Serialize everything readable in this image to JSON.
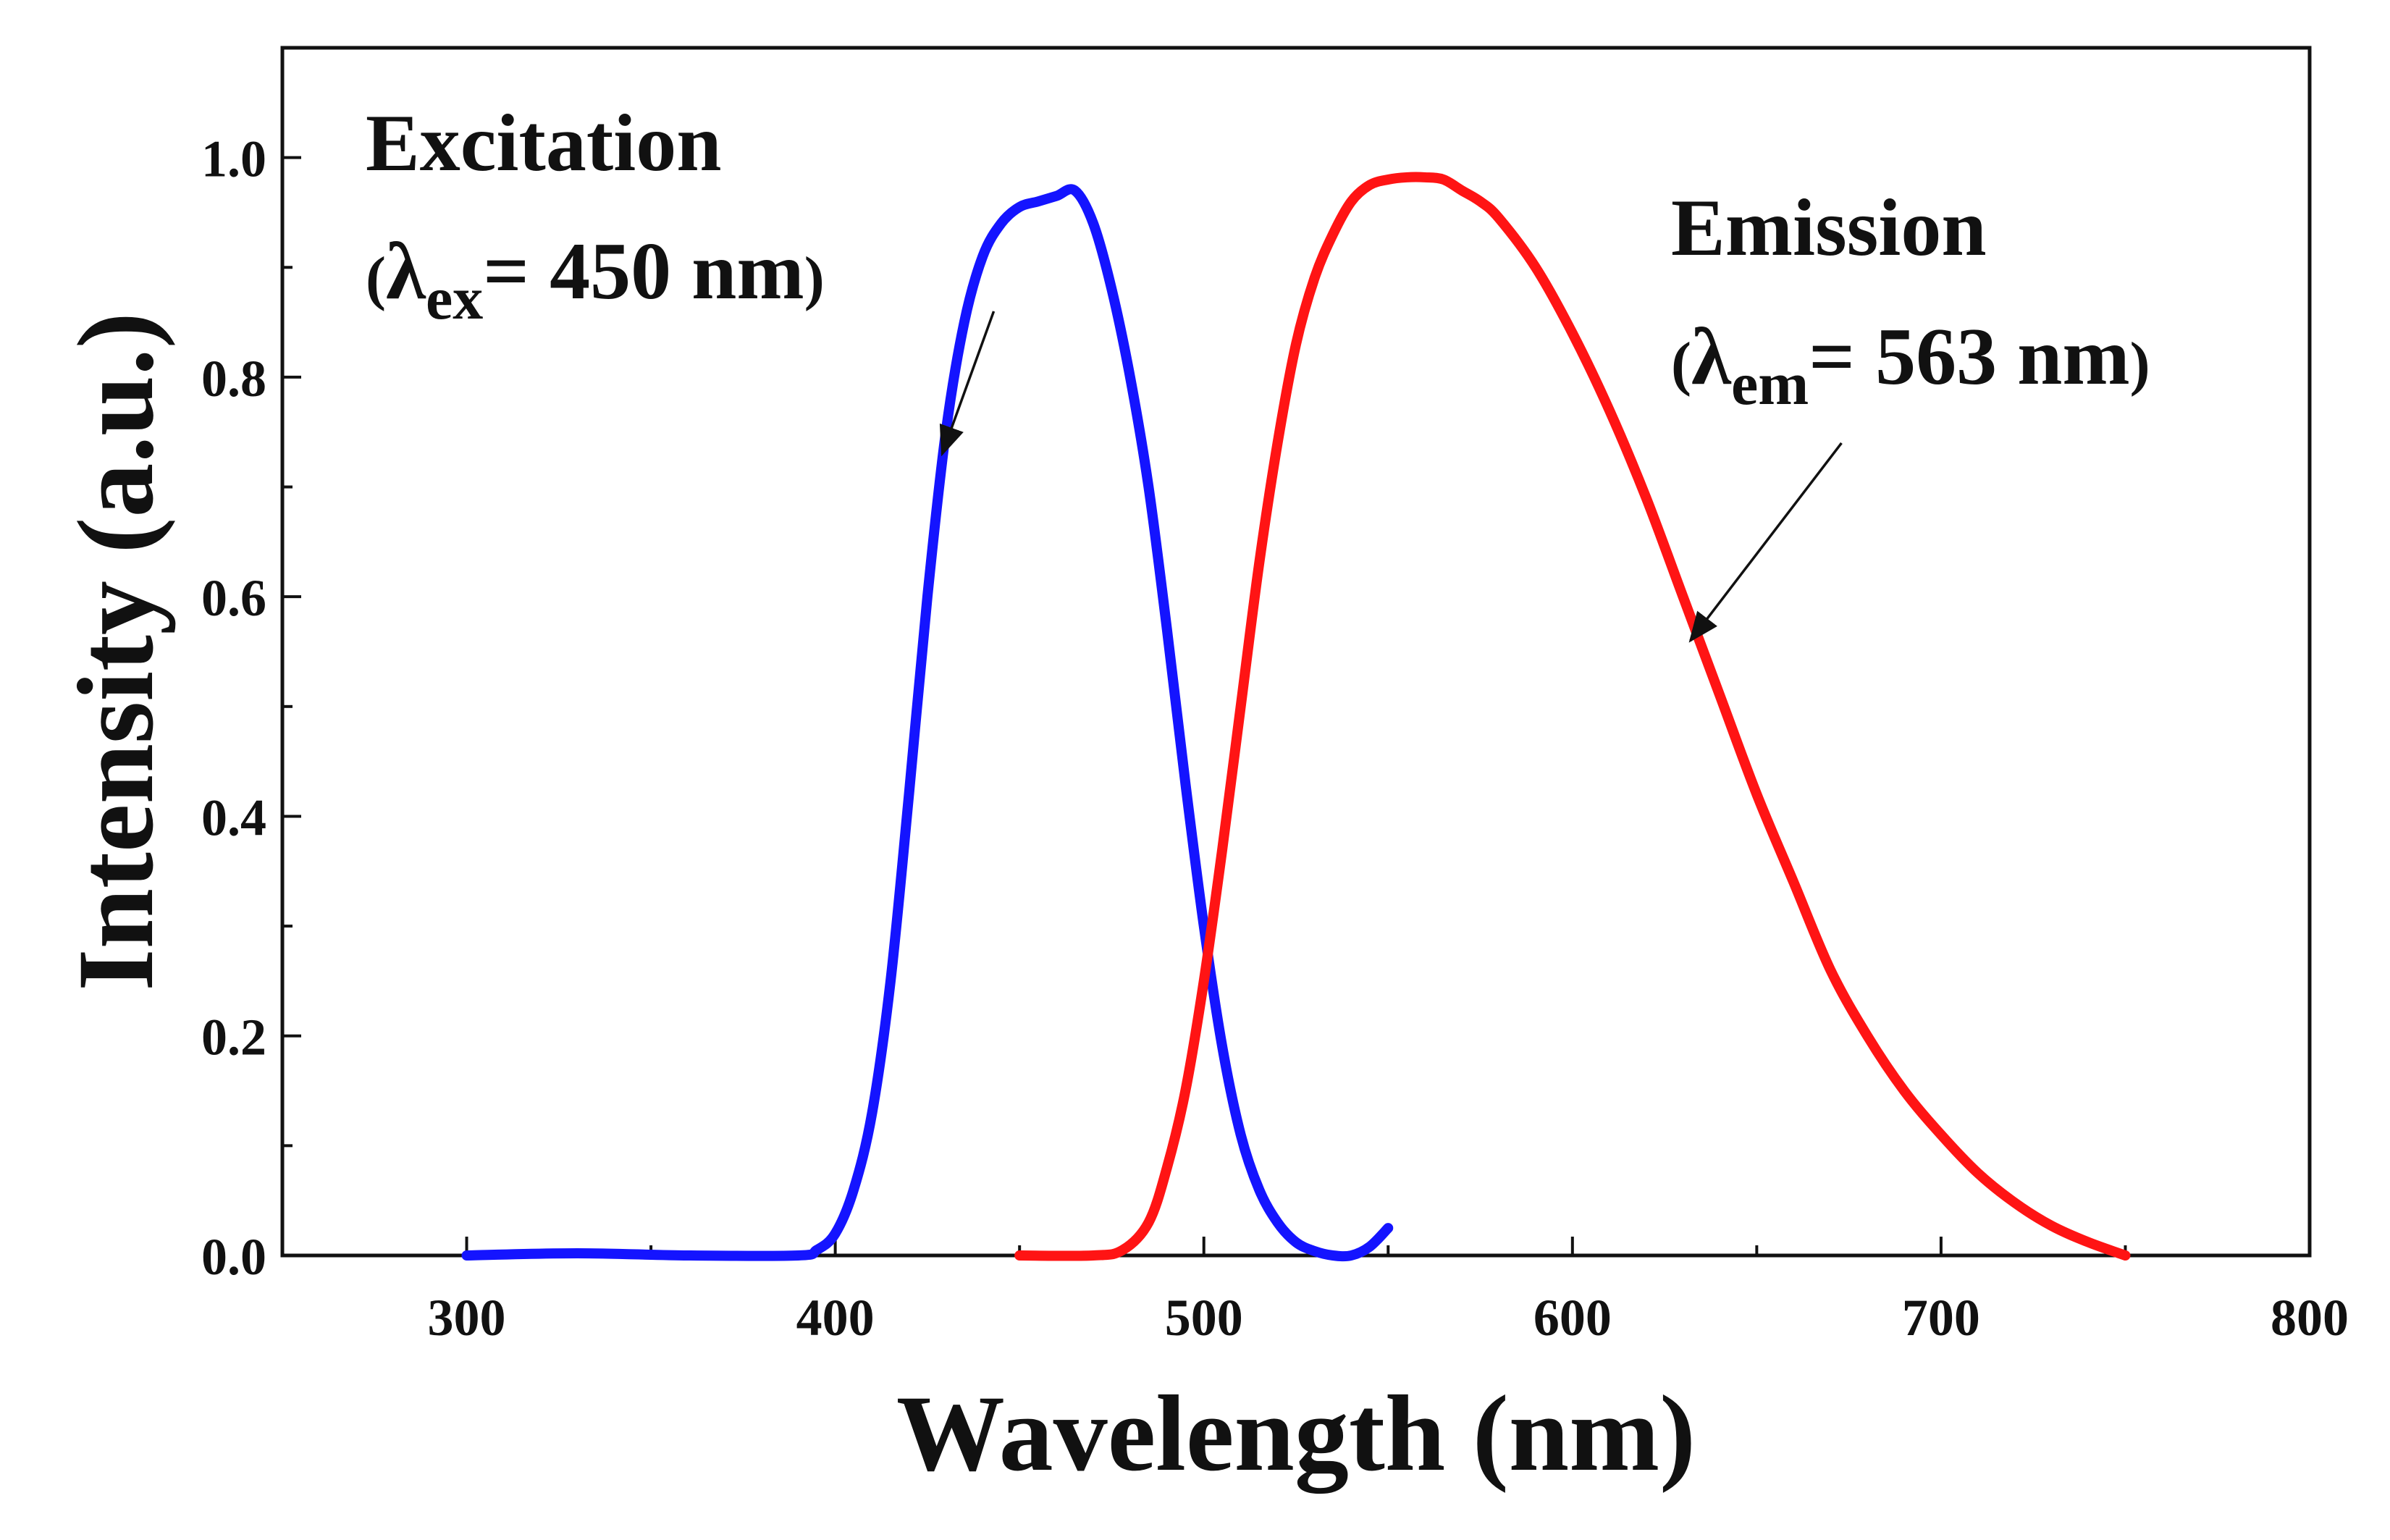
{
  "chart_data": {
    "type": "line",
    "xlabel": "Wavelength (nm)",
    "ylabel": "Intensity (a.u.)",
    "xlim": [
      250,
      800
    ],
    "ylim": [
      0,
      1.1
    ],
    "xticks": [
      300,
      400,
      500,
      600,
      700,
      800
    ],
    "xtick_labels": [
      "300",
      "400",
      "500",
      "600",
      "700",
      "800"
    ],
    "yticks": [
      0.0,
      0.2,
      0.4,
      0.6,
      0.8,
      1.0
    ],
    "ytick_labels": [
      "0.0",
      "0.2",
      "0.4",
      "0.6",
      "0.8",
      "1.0"
    ],
    "grid": false,
    "series": [
      {
        "name": "Excitation",
        "color": "#1414ff",
        "x": [
          300,
          330,
          360,
          390,
          395,
          400,
          405,
          410,
          415,
          420,
          425,
          430,
          435,
          440,
          445,
          450,
          455,
          460,
          465,
          470,
          475,
          480,
          485,
          490,
          495,
          500,
          505,
          510,
          515,
          520,
          525,
          530,
          535,
          540,
          545,
          550
        ],
        "y": [
          0.0,
          0.002,
          0.0,
          0.0,
          0.005,
          0.02,
          0.06,
          0.13,
          0.25,
          0.42,
          0.6,
          0.75,
          0.85,
          0.91,
          0.94,
          0.955,
          0.96,
          0.965,
          0.97,
          0.94,
          0.88,
          0.8,
          0.7,
          0.57,
          0.43,
          0.3,
          0.19,
          0.11,
          0.06,
          0.03,
          0.012,
          0.004,
          0.0,
          0.0,
          0.008,
          0.025
        ]
      },
      {
        "name": "Emission",
        "color": "#ff1414",
        "x": [
          450,
          470,
          478,
          485,
          490,
          495,
          500,
          505,
          510,
          515,
          520,
          525,
          530,
          535,
          540,
          545,
          550,
          555,
          560,
          565,
          570,
          575,
          580,
          590,
          600,
          610,
          620,
          630,
          640,
          650,
          660,
          670,
          680,
          690,
          700,
          710,
          720,
          730,
          740,
          750
        ],
        "y": [
          0.0,
          0.0,
          0.005,
          0.03,
          0.08,
          0.15,
          0.25,
          0.37,
          0.5,
          0.63,
          0.74,
          0.83,
          0.89,
          0.93,
          0.96,
          0.975,
          0.98,
          0.982,
          0.982,
          0.98,
          0.97,
          0.96,
          0.945,
          0.9,
          0.84,
          0.77,
          0.69,
          0.6,
          0.51,
          0.42,
          0.34,
          0.26,
          0.2,
          0.15,
          0.11,
          0.075,
          0.048,
          0.027,
          0.012,
          0.0
        ]
      }
    ],
    "annotations": [
      {
        "id": "excitation",
        "name": "Excitation",
        "open_paren": "(",
        "symbol": "λ",
        "subscript": "ex",
        "value_text": "= 450 nm",
        "close_paren": ")",
        "arrow_tail": [
          443,
          0.86
        ],
        "arrow_head": [
          429,
          0.73
        ]
      },
      {
        "id": "emission",
        "name": "Emission",
        "open_paren": "(",
        "symbol": "λ",
        "subscript": "em",
        "value_text": "= 563 nm",
        "close_paren": ")",
        "arrow_tail": [
          673,
          0.74
        ],
        "arrow_head": [
          632,
          0.56
        ]
      }
    ]
  }
}
